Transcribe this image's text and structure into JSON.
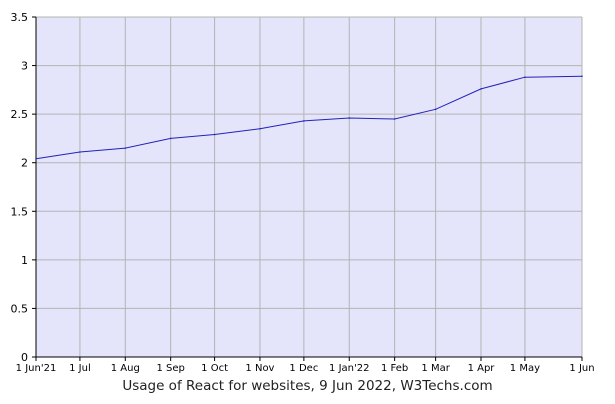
{
  "chart_data": {
    "type": "line",
    "title": "Usage of React for websites, 9 Jun 2022, W3Techs.com",
    "xlabel": "",
    "ylabel": "",
    "ylim": [
      0,
      3.5
    ],
    "yticks": [
      "0",
      "0.5",
      "1",
      "1.5",
      "2",
      "2.5",
      "3",
      "3.5"
    ],
    "x_tick_labels": [
      "1 Jun'21",
      "1 Jul",
      "1 Aug",
      "1 Sep",
      "1 Oct",
      "1 Nov",
      "1 Dec",
      "1 Jan'22",
      "1 Feb",
      "1 Mar",
      "1 Apr",
      "1 May",
      "1 Jun"
    ],
    "grid": true,
    "series": [
      {
        "values": [
          {
            "x": "2021-06-01",
            "y": 2.04
          },
          {
            "x": "2021-07-01",
            "y": 2.11
          },
          {
            "x": "2021-08-01",
            "y": 2.15
          },
          {
            "x": "2021-09-01",
            "y": 2.25
          },
          {
            "x": "2021-10-01",
            "y": 2.29
          },
          {
            "x": "2021-11-01",
            "y": 2.35
          },
          {
            "x": "2021-12-01",
            "y": 2.43
          },
          {
            "x": "2022-01-01",
            "y": 2.46
          },
          {
            "x": "2022-02-01",
            "y": 2.45
          },
          {
            "x": "2022-03-01",
            "y": 2.55
          },
          {
            "x": "2022-04-01",
            "y": 2.76
          },
          {
            "x": "2022-05-01",
            "y": 2.88
          },
          {
            "x": "2022-06-09",
            "y": 2.89
          }
        ]
      }
    ],
    "colors": {
      "plot_background": "#e4e4fa",
      "grid": "#b4b4b4",
      "line": "#2222bb",
      "axis": "#000000"
    }
  }
}
